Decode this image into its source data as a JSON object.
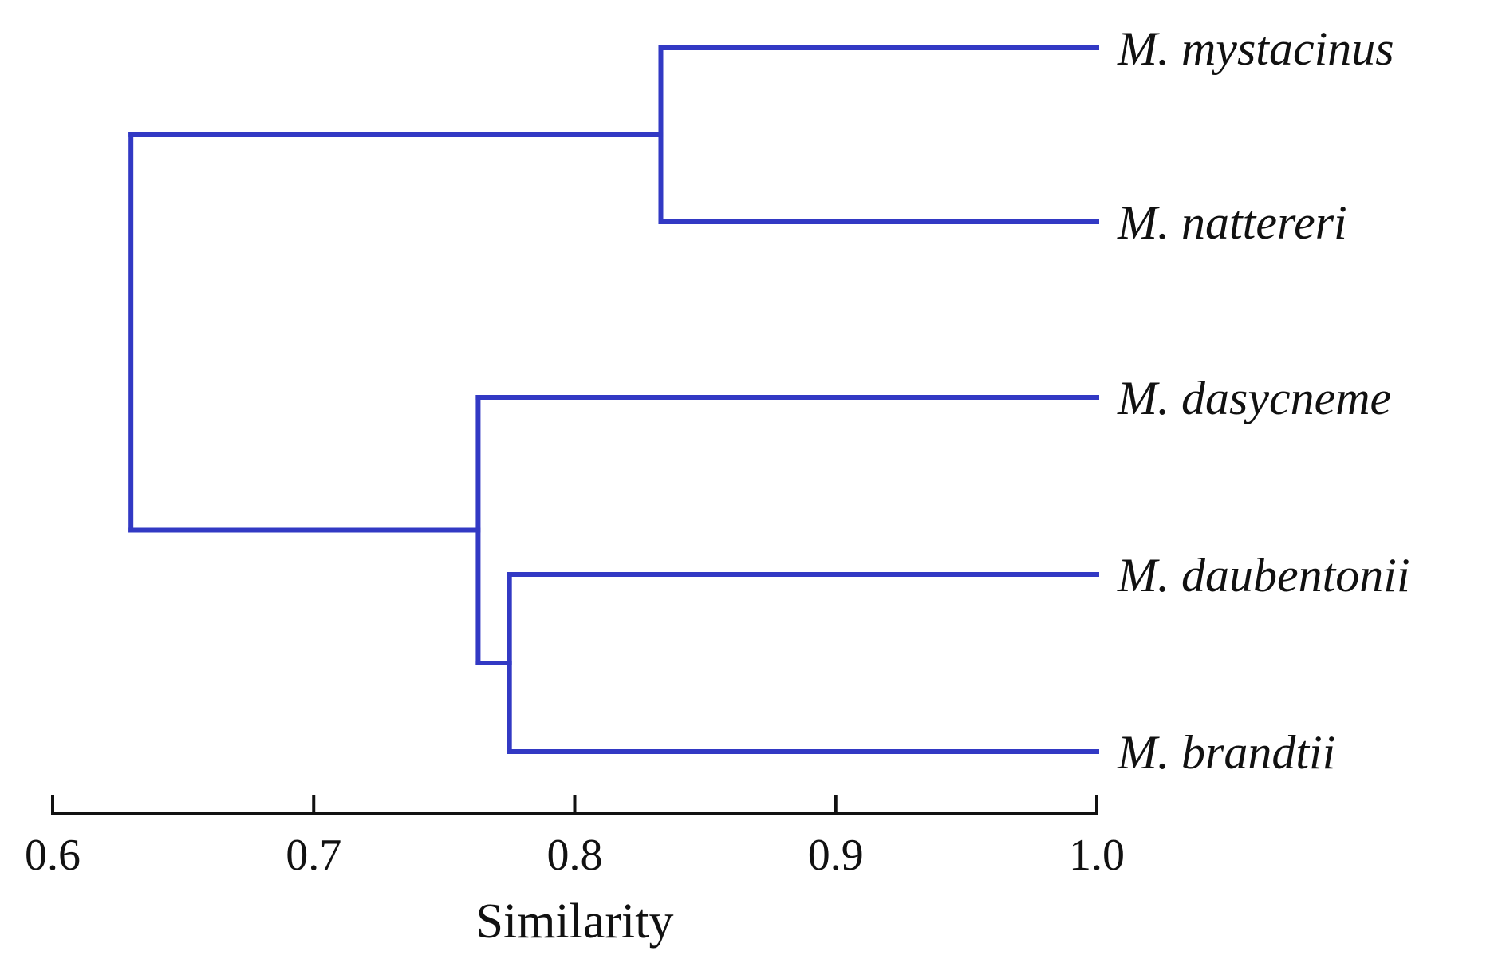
{
  "figure": {
    "kind": "dendrogram-figure",
    "background": "#ffffff"
  },
  "chart_data": {
    "type": "dendrogram",
    "orientation": "horizontal",
    "title": "",
    "xlabel": "Similarity",
    "axis": {
      "min": 0.6,
      "max": 1.0,
      "ticks": [
        {
          "value": 0.6,
          "label": "0.6"
        },
        {
          "value": 0.7,
          "label": "0.7"
        },
        {
          "value": 0.8,
          "label": "0.8"
        },
        {
          "value": 0.9,
          "label": "0.9"
        },
        {
          "value": 1.0,
          "label": "1.0"
        }
      ]
    },
    "leaf_similarity": 1.0,
    "leaves": [
      "M. mystacinus",
      "M. nattereri",
      "M. dasycneme",
      "M. daubentonii",
      "M. brandtii"
    ],
    "tree": {
      "similarity": 0.63,
      "children": [
        {
          "similarity": 0.833,
          "children": [
            {
              "leaf": "M. mystacinus"
            },
            {
              "leaf": "M. nattereri"
            }
          ]
        },
        {
          "similarity": 0.763,
          "children": [
            {
              "leaf": "M. dasycneme"
            },
            {
              "similarity": 0.775,
              "children": [
                {
                  "leaf": "M. daubentonii"
                },
                {
                  "leaf": "M. brandtii"
                }
              ]
            }
          ]
        }
      ]
    },
    "merges": [
      {
        "members": [
          "M. mystacinus",
          "M. nattereri"
        ],
        "similarity": 0.833
      },
      {
        "members": [
          "M. daubentonii",
          "M. brandtii"
        ],
        "similarity": 0.775
      },
      {
        "members": [
          "M. dasycneme",
          "M. daubentonii + M. brandtii"
        ],
        "similarity": 0.763
      },
      {
        "members": [
          "M. mystacinus + M. nattereri",
          "M. dasycneme + M. daubentonii + M. brandtii"
        ],
        "similarity": 0.63
      }
    ],
    "colors": {
      "branch": "#3239c4",
      "axis": "#111111",
      "text": "#111111"
    }
  }
}
